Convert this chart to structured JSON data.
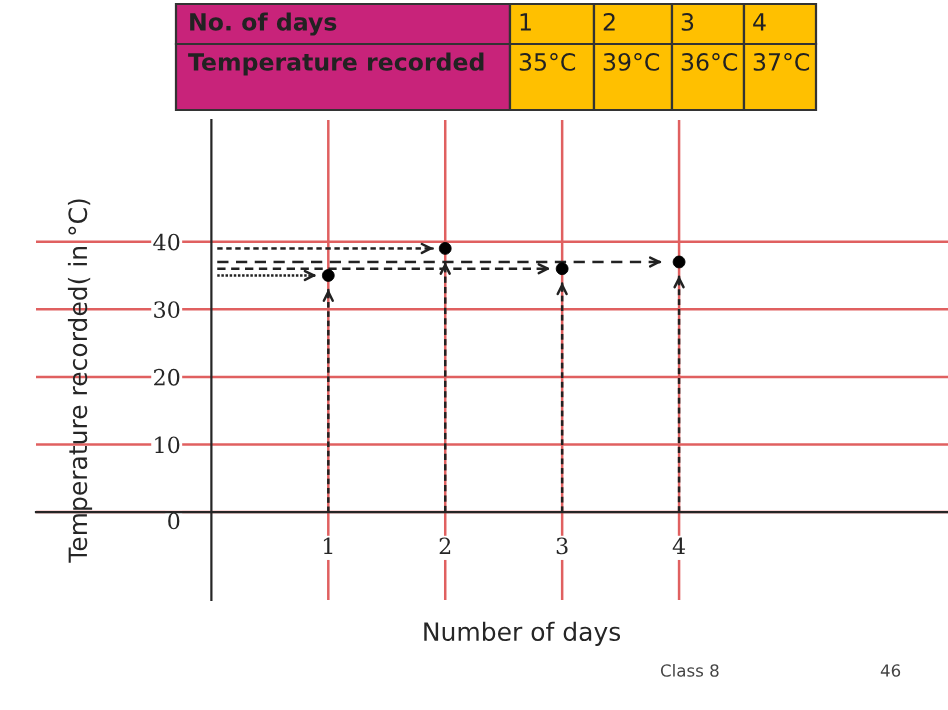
{
  "chart_data": {
    "type": "scatter",
    "x": [
      1,
      2,
      3,
      4
    ],
    "values": [
      35,
      39,
      36,
      37
    ],
    "color": "#000000",
    "marker": "circle",
    "xlabel": "Number of days",
    "ylabel": "Temperature recorded( in °C)",
    "xlim": [
      -1.5,
      6.3
    ],
    "ylim": [
      -13,
      58
    ],
    "xticks": [
      1,
      2,
      3,
      4
    ],
    "yticks": [
      0,
      10,
      20,
      30,
      40
    ],
    "grid": true,
    "annotations": [
      "No. of days",
      "1",
      "2",
      "3",
      "4",
      "Temperature recorded",
      "35°C",
      "39°C",
      "36°C",
      "37°C",
      "Class 8",
      "46"
    ]
  }
}
